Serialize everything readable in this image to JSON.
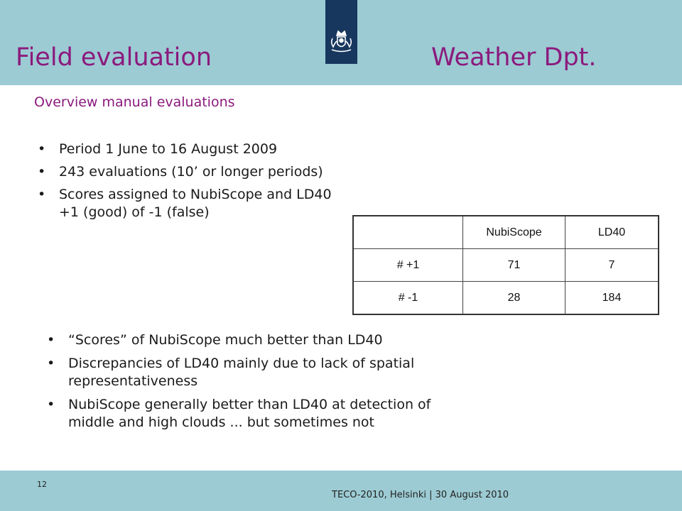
{
  "header": {
    "title_left": "Field evaluation",
    "title_right": "Weather Dpt."
  },
  "colors": {
    "band": "#9ccbd3",
    "title": "#8b1a7d",
    "logo_bg": "#17375e"
  },
  "logo": {
    "icon": "coat-of-arms-icon"
  },
  "subtitle": "Overview manual evaluations",
  "bullets_top": [
    {
      "lines": [
        "Period 1 June to 16 August 2009"
      ]
    },
    {
      "lines": [
        "243 evaluations (10’ or longer periods)"
      ]
    },
    {
      "lines": [
        "Scores assigned to NubiScope and LD40",
        "+1 (good) of -1 (false)"
      ]
    }
  ],
  "table": {
    "headers": [
      "",
      "NubiScope",
      "LD40"
    ],
    "rows": [
      [
        "# +1",
        "71",
        "7"
      ],
      [
        "# -1",
        "28",
        "184"
      ]
    ]
  },
  "bullets_bottom": [
    {
      "lines": [
        "“Scores” of NubiScope much better than LD40"
      ]
    },
    {
      "lines": [
        "Discrepancies of LD40 mainly due to lack of spatial",
        "representativeness"
      ]
    },
    {
      "lines": [
        "NubiScope generally better than LD40 at detection of",
        "middle and high clouds ... but sometimes not"
      ]
    }
  ],
  "footer": {
    "page_number": "12",
    "text": "TECO-2010, Helsinki  |  30 August  2010"
  }
}
